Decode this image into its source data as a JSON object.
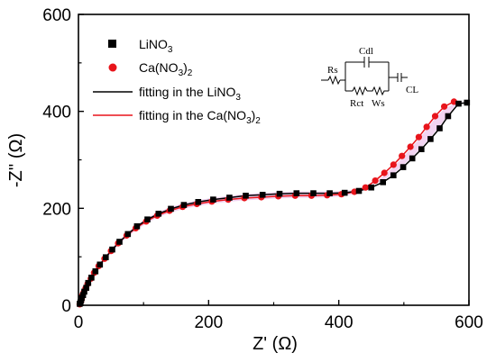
{
  "chart_data": {
    "type": "scatter",
    "xlabel": "Z' (Ω)",
    "ylabel": "-Z'' (Ω)",
    "xlim": [
      0,
      600
    ],
    "ylim": [
      0,
      600
    ],
    "x_ticks": [
      "0",
      "200",
      "400",
      "600"
    ],
    "y_ticks": [
      "0",
      "200",
      "400",
      "600"
    ],
    "grid": false,
    "legend_position": "top-left",
    "colors": {
      "LiNO3": "#000000",
      "CaNO3": "#e8141b",
      "fitting_li": "#000000",
      "fitting_ca": "#e8141b",
      "band": "#e9b8e8"
    },
    "legend": {
      "li_marker_text": "LiNO",
      "li_marker_sub": "3",
      "ca_marker_pre": "Ca(NO",
      "ca_marker_sub": "3",
      "ca_marker_post": ")",
      "ca_marker_sub2": "2",
      "li_fit_pre": "fitting in the LiNO",
      "li_fit_sub": "3",
      "ca_fit_pre": "fitting in the Ca(NO",
      "ca_fit_sub": "3",
      "ca_fit_post": ")",
      "ca_fit_sub2": "2"
    },
    "circuit": {
      "rs": "Rs",
      "cdl": "Cdl",
      "rct": "Rct",
      "ws": "Ws",
      "cl": "CL"
    },
    "series": [
      {
        "name": "LiNO3",
        "marker": "square",
        "x": [
          2,
          3,
          4,
          5,
          7,
          9,
          12,
          15,
          20,
          26,
          33,
          42,
          52,
          63,
          76,
          90,
          106,
          123,
          142,
          162,
          184,
          207,
          232,
          257,
          283,
          309,
          335,
          361,
          386,
          409,
          431,
          450,
          468,
          484,
          499,
          513,
          527,
          541,
          555,
          568,
          584,
          597
        ],
        "y": [
          3,
          6,
          10,
          15,
          21,
          28,
          36,
          46,
          57,
          70,
          84,
          99,
          115,
          131,
          147,
          163,
          177,
          189,
          199,
          207,
          213,
          218,
          222,
          226,
          228,
          230,
          231,
          231,
          231,
          232,
          236,
          243,
          254,
          268,
          285,
          303,
          322,
          343,
          365,
          390,
          416,
          418
        ]
      },
      {
        "name": "Ca(NO3)2",
        "marker": "circle",
        "x": [
          2,
          3,
          4,
          5,
          6,
          8,
          11,
          14,
          19,
          24,
          31,
          40,
          50,
          61,
          74,
          88,
          104,
          121,
          140,
          160,
          182,
          205,
          230,
          255,
          281,
          307,
          333,
          358,
          382,
          404,
          424,
          441,
          456,
          470,
          484,
          497,
          510,
          523,
          535,
          548,
          562,
          577
        ],
        "y": [
          2,
          5,
          9,
          14,
          20,
          27,
          35,
          44,
          55,
          67,
          81,
          96,
          112,
          128,
          144,
          159,
          173,
          185,
          195,
          203,
          209,
          214,
          218,
          221,
          223,
          225,
          226,
          226,
          227,
          229,
          234,
          243,
          257,
          273,
          290,
          308,
          327,
          347,
          368,
          390,
          410,
          420
        ]
      }
    ]
  }
}
